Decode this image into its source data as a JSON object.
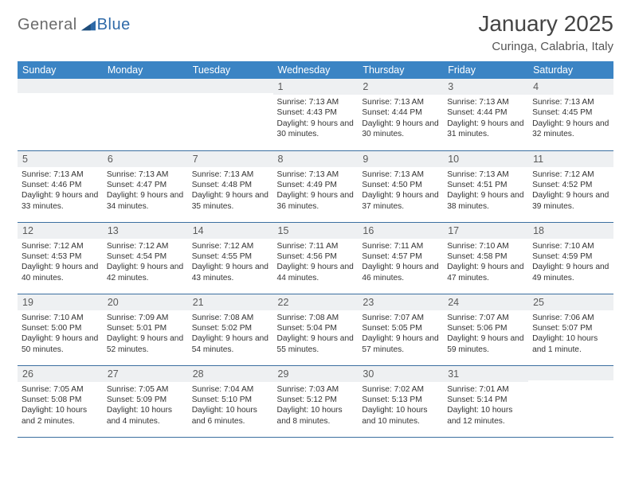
{
  "logo": {
    "word1": "General",
    "word2": "Blue"
  },
  "title": "January 2025",
  "subtitle": "Curinga, Calabria, Italy",
  "colors": {
    "header_bg": "#3b84c4",
    "header_fg": "#ffffff",
    "row_border": "#3b6fa0",
    "daybar_bg": "#eef0f2",
    "logo_gray": "#6b6b6b",
    "logo_blue": "#2f6aa8"
  },
  "weekdays": [
    "Sunday",
    "Monday",
    "Tuesday",
    "Wednesday",
    "Thursday",
    "Friday",
    "Saturday"
  ],
  "weeks": [
    [
      null,
      null,
      null,
      {
        "n": "1",
        "sr": "7:13 AM",
        "ss": "4:43 PM",
        "dl": "9 hours and 30 minutes."
      },
      {
        "n": "2",
        "sr": "7:13 AM",
        "ss": "4:44 PM",
        "dl": "9 hours and 30 minutes."
      },
      {
        "n": "3",
        "sr": "7:13 AM",
        "ss": "4:44 PM",
        "dl": "9 hours and 31 minutes."
      },
      {
        "n": "4",
        "sr": "7:13 AM",
        "ss": "4:45 PM",
        "dl": "9 hours and 32 minutes."
      }
    ],
    [
      {
        "n": "5",
        "sr": "7:13 AM",
        "ss": "4:46 PM",
        "dl": "9 hours and 33 minutes."
      },
      {
        "n": "6",
        "sr": "7:13 AM",
        "ss": "4:47 PM",
        "dl": "9 hours and 34 minutes."
      },
      {
        "n": "7",
        "sr": "7:13 AM",
        "ss": "4:48 PM",
        "dl": "9 hours and 35 minutes."
      },
      {
        "n": "8",
        "sr": "7:13 AM",
        "ss": "4:49 PM",
        "dl": "9 hours and 36 minutes."
      },
      {
        "n": "9",
        "sr": "7:13 AM",
        "ss": "4:50 PM",
        "dl": "9 hours and 37 minutes."
      },
      {
        "n": "10",
        "sr": "7:13 AM",
        "ss": "4:51 PM",
        "dl": "9 hours and 38 minutes."
      },
      {
        "n": "11",
        "sr": "7:12 AM",
        "ss": "4:52 PM",
        "dl": "9 hours and 39 minutes."
      }
    ],
    [
      {
        "n": "12",
        "sr": "7:12 AM",
        "ss": "4:53 PM",
        "dl": "9 hours and 40 minutes."
      },
      {
        "n": "13",
        "sr": "7:12 AM",
        "ss": "4:54 PM",
        "dl": "9 hours and 42 minutes."
      },
      {
        "n": "14",
        "sr": "7:12 AM",
        "ss": "4:55 PM",
        "dl": "9 hours and 43 minutes."
      },
      {
        "n": "15",
        "sr": "7:11 AM",
        "ss": "4:56 PM",
        "dl": "9 hours and 44 minutes."
      },
      {
        "n": "16",
        "sr": "7:11 AM",
        "ss": "4:57 PM",
        "dl": "9 hours and 46 minutes."
      },
      {
        "n": "17",
        "sr": "7:10 AM",
        "ss": "4:58 PM",
        "dl": "9 hours and 47 minutes."
      },
      {
        "n": "18",
        "sr": "7:10 AM",
        "ss": "4:59 PM",
        "dl": "9 hours and 49 minutes."
      }
    ],
    [
      {
        "n": "19",
        "sr": "7:10 AM",
        "ss": "5:00 PM",
        "dl": "9 hours and 50 minutes."
      },
      {
        "n": "20",
        "sr": "7:09 AM",
        "ss": "5:01 PM",
        "dl": "9 hours and 52 minutes."
      },
      {
        "n": "21",
        "sr": "7:08 AM",
        "ss": "5:02 PM",
        "dl": "9 hours and 54 minutes."
      },
      {
        "n": "22",
        "sr": "7:08 AM",
        "ss": "5:04 PM",
        "dl": "9 hours and 55 minutes."
      },
      {
        "n": "23",
        "sr": "7:07 AM",
        "ss": "5:05 PM",
        "dl": "9 hours and 57 minutes."
      },
      {
        "n": "24",
        "sr": "7:07 AM",
        "ss": "5:06 PM",
        "dl": "9 hours and 59 minutes."
      },
      {
        "n": "25",
        "sr": "7:06 AM",
        "ss": "5:07 PM",
        "dl": "10 hours and 1 minute."
      }
    ],
    [
      {
        "n": "26",
        "sr": "7:05 AM",
        "ss": "5:08 PM",
        "dl": "10 hours and 2 minutes."
      },
      {
        "n": "27",
        "sr": "7:05 AM",
        "ss": "5:09 PM",
        "dl": "10 hours and 4 minutes."
      },
      {
        "n": "28",
        "sr": "7:04 AM",
        "ss": "5:10 PM",
        "dl": "10 hours and 6 minutes."
      },
      {
        "n": "29",
        "sr": "7:03 AM",
        "ss": "5:12 PM",
        "dl": "10 hours and 8 minutes."
      },
      {
        "n": "30",
        "sr": "7:02 AM",
        "ss": "5:13 PM",
        "dl": "10 hours and 10 minutes."
      },
      {
        "n": "31",
        "sr": "7:01 AM",
        "ss": "5:14 PM",
        "dl": "10 hours and 12 minutes."
      },
      null
    ]
  ],
  "labels": {
    "sunrise": "Sunrise:",
    "sunset": "Sunset:",
    "daylight": "Daylight:"
  }
}
